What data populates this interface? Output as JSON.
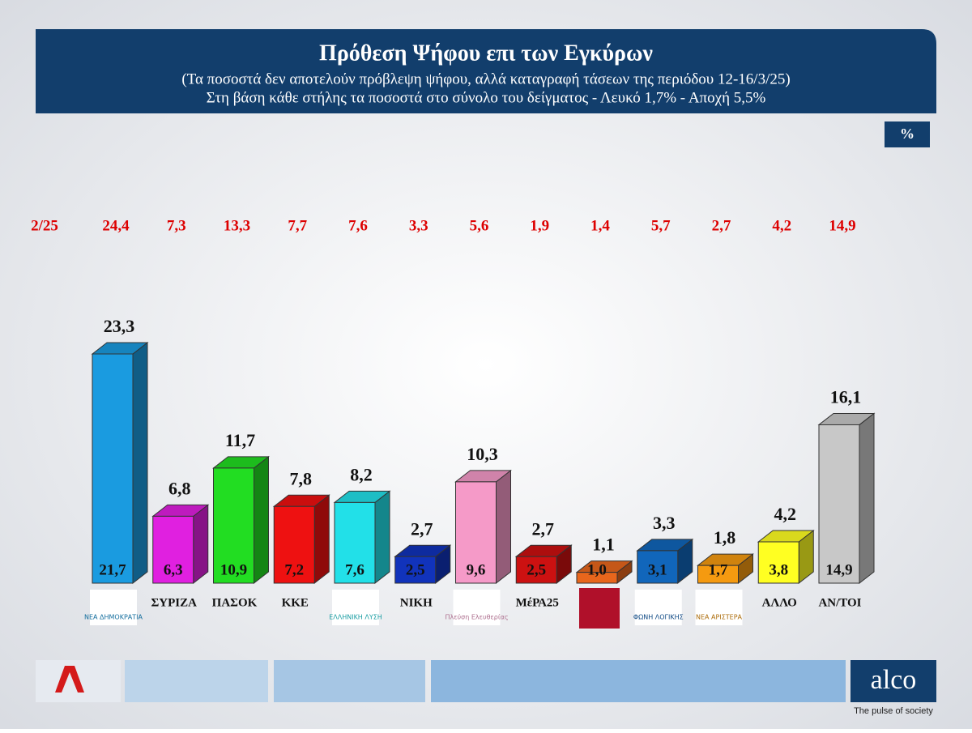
{
  "chart_data": {
    "type": "bar3d",
    "title": "Πρόθεση Ψήφου επι των Εγκύρων",
    "subtitle": "(Τα ποσοστά δεν αποτελούν πρόβλεψη ψήφου, αλλά καταγραφή τάσεων της περιόδου  12-16/3/25)",
    "subtitle2": "Στη βάση κάθε στήλης τα ποσοστά στο σύνολο του δείγματος - Λευκό 1,7% - Αποχή 5,5%",
    "unit": "%",
    "categories": [
      "ΝΕΑ ΔΗΜΟΚΡΑΤΙΑ",
      "ΣΥΡΙΖΑ",
      "ΠΑΣΟΚ",
      "ΚΚΕ",
      "ΕΛΛΗΝΙΚΗ ΛΥΣΗ",
      "ΝΙΚΗ",
      "Πλεύση Ελευθερίας",
      "ΜέΡΑ25",
      null,
      "ΦΩΝΗ ΛΟΓΙΚΗΣ",
      "ΝΕΑ ΑΡΙΣΤΕΡΑ",
      "ΑΛΛΟ",
      "ΑΝ/ΤΟΙ"
    ],
    "colors": [
      "#1a9be0",
      "#e020e0",
      "#22dd22",
      "#ee1111",
      "#22e0e8",
      "#1133bb",
      "#f59ac8",
      "#cc1111",
      "#e8661c",
      "#1166bb",
      "#f59a10",
      "#ffff22",
      "#c8c8c8"
    ],
    "values": [
      23.3,
      6.8,
      11.7,
      7.8,
      8.2,
      2.7,
      10.3,
      2.7,
      1.1,
      3.3,
      1.8,
      4.2,
      16.1
    ],
    "value_labels": [
      "23,3",
      "6,8",
      "11,7",
      "7,8",
      "8,2",
      "2,7",
      "10,3",
      "2,7",
      "1,1",
      "3,3",
      "1,8",
      "4,2",
      "16,1"
    ],
    "sample_values": [
      21.7,
      6.3,
      10.9,
      7.2,
      7.6,
      2.5,
      9.6,
      2.5,
      1.0,
      3.1,
      1.7,
      3.8,
      14.9
    ],
    "sample_value_labels": [
      "21,7",
      "6,3",
      "10,9",
      "7,2",
      "7,6",
      "2,5",
      "9,6",
      "2,5",
      "1,0",
      "3,1",
      "1,7",
      "3,8",
      "14,9"
    ],
    "previous_label": "2/25",
    "previous_values": [
      24.4,
      7.3,
      13.3,
      7.7,
      7.6,
      3.3,
      5.6,
      1.9,
      1.4,
      5.7,
      2.7,
      4.2,
      14.9
    ],
    "previous_value_labels": [
      "24,4",
      "7,3",
      "13,3",
      "7,7",
      "7,6",
      "3,3",
      "5,6",
      "1,9",
      "1,4",
      "5,7",
      "2,7",
      "4,2",
      "14,9"
    ]
  },
  "footer": {
    "brand": "alco",
    "tagline": "The pulse of society"
  }
}
